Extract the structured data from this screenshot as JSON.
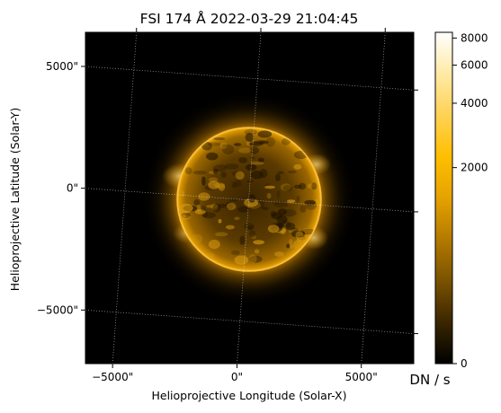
{
  "chart_data": {
    "type": "heatmap",
    "title": "FSI 174 Å 2022-03-29 21:04:45",
    "xlabel": "Helioprojective Longitude (Solar-X)",
    "ylabel": "Helioprojective Latitude (Solar-Y)",
    "x_ticks": [
      {
        "value": -5000,
        "label": "−5000\""
      },
      {
        "value": 0,
        "label": "0\""
      },
      {
        "value": 5000,
        "label": "5000\""
      }
    ],
    "y_ticks": [
      {
        "value": 5000,
        "label": "5000\""
      },
      {
        "value": 0,
        "label": "0\""
      },
      {
        "value": -5000,
        "label": "−5000\""
      }
    ],
    "xlim": [
      -6200,
      7000
    ],
    "ylim": [
      -7200,
      6400
    ],
    "grid": true,
    "colorbar": {
      "label": "DN / s",
      "scale": "asinh",
      "range": [
        0,
        8500
      ],
      "ticks": [
        0,
        2000,
        4000,
        6000,
        8000
      ],
      "tick_labels": [
        "0",
        "2000",
        "4000",
        "6000",
        "8000"
      ],
      "colormap": [
        "#000000",
        "#3a2600",
        "#7a5200",
        "#b47a00",
        "#e6a200",
        "#ffbf00",
        "#ffd255",
        "#ffeaa5",
        "#ffffff"
      ]
    },
    "sun": {
      "center_x": 500,
      "center_y": -500,
      "radius_arcsec": 2900
    }
  }
}
